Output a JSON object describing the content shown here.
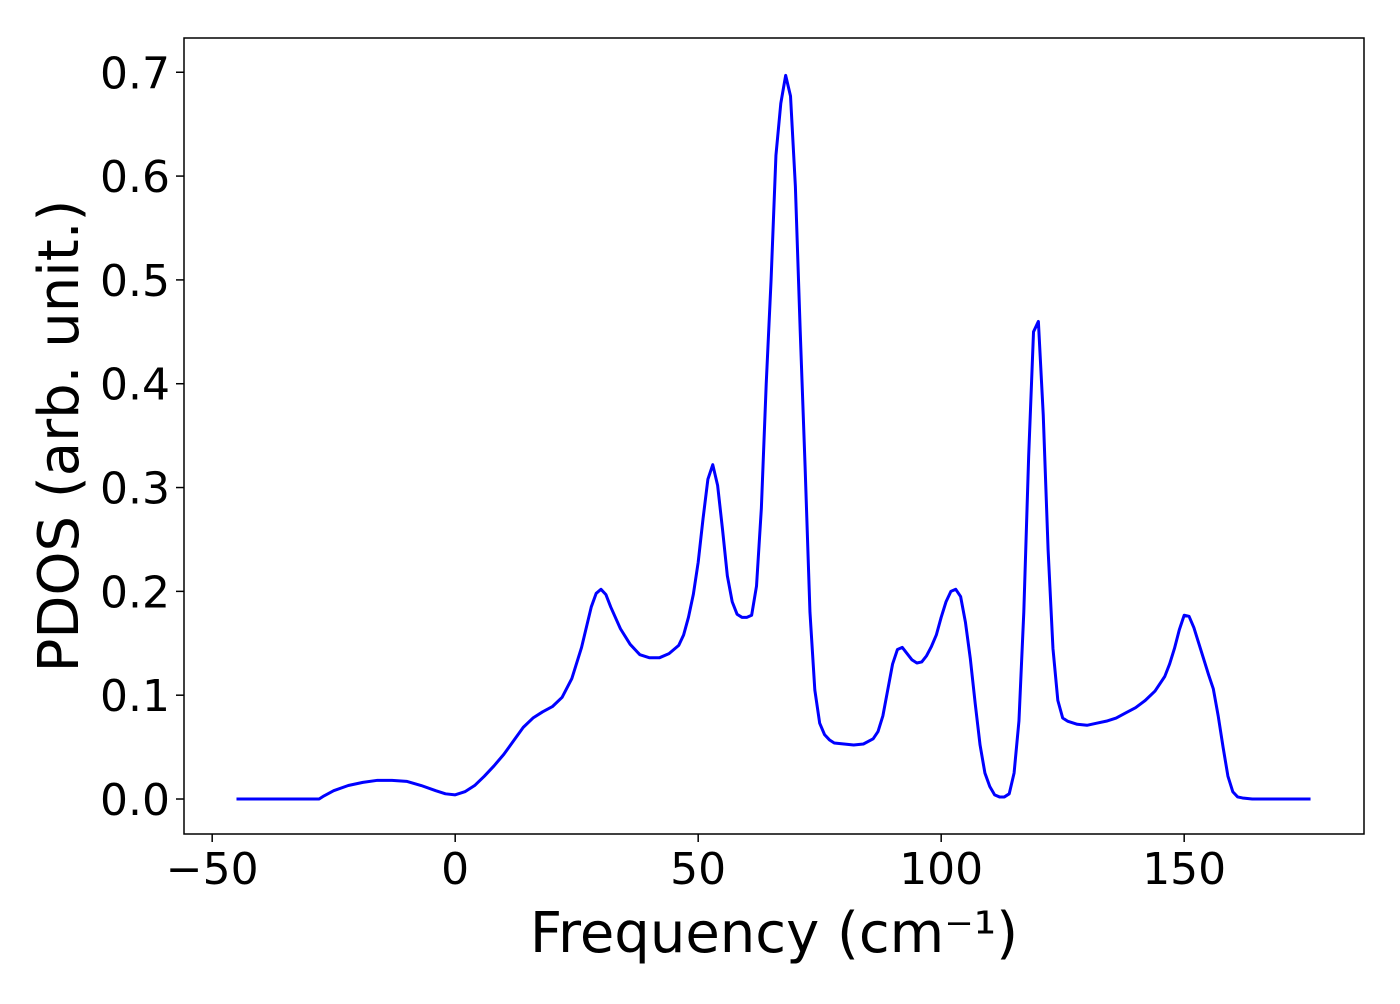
{
  "chart_data": {
    "type": "line",
    "xlabel": "Frequency (cm⁻¹)",
    "ylabel": "PDOS (arb. unit.)",
    "xlim": [
      -55.8,
      187.0
    ],
    "ylim": [
      -0.0337,
      0.733
    ],
    "xticks": [
      {
        "value": -50,
        "label": "−50"
      },
      0,
      50,
      100,
      150
    ],
    "yticks": [
      {
        "value": 0,
        "label": "0.0"
      },
      0.1,
      0.2,
      0.3,
      0.4,
      0.5,
      0.6,
      0.7
    ],
    "grid": false,
    "series": [
      {
        "color": "#0000ff",
        "x": [
          -45,
          -28,
          -27,
          -25,
          -22,
          -19,
          -16,
          -13,
          -10,
          -7,
          -4,
          -2,
          0,
          2,
          4,
          6,
          8,
          10,
          12,
          14,
          16,
          18,
          20,
          22,
          24,
          26,
          28,
          29,
          30,
          31,
          32,
          34,
          36,
          38,
          40,
          42,
          44,
          46,
          47,
          48,
          49,
          50,
          51,
          52,
          53,
          54,
          55,
          56,
          57,
          58,
          59,
          60,
          61,
          62,
          63,
          64,
          65,
          66,
          67,
          68,
          69,
          70,
          71,
          72,
          73,
          74,
          75,
          76,
          77,
          78,
          80,
          82,
          84,
          86,
          87,
          88,
          89,
          90,
          91,
          92,
          93,
          94,
          95,
          96,
          97,
          98,
          99,
          100,
          101,
          102,
          103,
          104,
          105,
          106,
          107,
          108,
          109,
          110,
          111,
          112,
          113,
          114,
          115,
          116,
          117,
          118,
          119,
          120,
          121,
          122,
          123,
          124,
          125,
          126,
          128,
          130,
          132,
          134,
          136,
          138,
          140,
          142,
          144,
          146,
          147,
          148,
          149,
          150,
          151,
          152,
          154,
          155,
          156,
          157,
          158,
          159,
          160,
          161,
          162,
          164,
          176
        ],
        "values": [
          0,
          0,
          0.003,
          0.008,
          0.013,
          0.016,
          0.018,
          0.018,
          0.017,
          0.013,
          0.008,
          0.005,
          0.004,
          0.007,
          0.013,
          0.022,
          0.032,
          0.043,
          0.056,
          0.069,
          0.078,
          0.084,
          0.089,
          0.098,
          0.116,
          0.146,
          0.185,
          0.198,
          0.202,
          0.197,
          0.185,
          0.164,
          0.149,
          0.139,
          0.136,
          0.136,
          0.14,
          0.148,
          0.158,
          0.175,
          0.197,
          0.228,
          0.27,
          0.308,
          0.322,
          0.302,
          0.26,
          0.215,
          0.19,
          0.178,
          0.175,
          0.175,
          0.177,
          0.205,
          0.28,
          0.4,
          0.5,
          0.62,
          0.67,
          0.697,
          0.677,
          0.59,
          0.45,
          0.32,
          0.18,
          0.105,
          0.073,
          0.062,
          0.057,
          0.054,
          0.053,
          0.052,
          0.053,
          0.058,
          0.065,
          0.08,
          0.105,
          0.13,
          0.144,
          0.146,
          0.14,
          0.134,
          0.131,
          0.132,
          0.138,
          0.147,
          0.158,
          0.175,
          0.19,
          0.2,
          0.202,
          0.195,
          0.17,
          0.135,
          0.092,
          0.052,
          0.025,
          0.012,
          0.004,
          0.002,
          0.002,
          0.005,
          0.025,
          0.075,
          0.18,
          0.33,
          0.45,
          0.46,
          0.37,
          0.24,
          0.145,
          0.095,
          0.078,
          0.075,
          0.072,
          0.071,
          0.073,
          0.075,
          0.078,
          0.083,
          0.088,
          0.095,
          0.104,
          0.118,
          0.13,
          0.145,
          0.163,
          0.177,
          0.176,
          0.165,
          0.135,
          0.12,
          0.106,
          0.08,
          0.05,
          0.022,
          0.007,
          0.002,
          0.001,
          0,
          0
        ]
      }
    ]
  }
}
